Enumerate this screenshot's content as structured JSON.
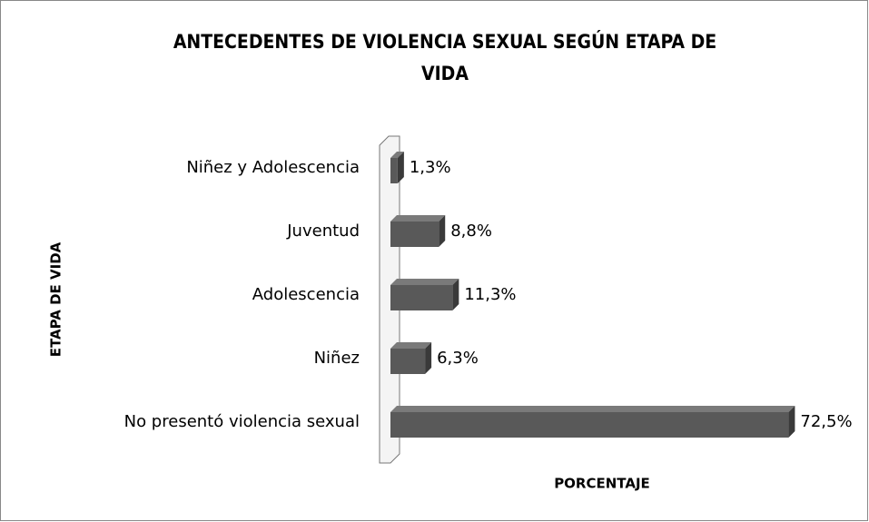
{
  "chart_data": {
    "type": "bar",
    "orientation": "horizontal",
    "title": "ANTECEDENTES DE VIOLENCIA SEXUAL SEGÚN ETAPA DE VIDA",
    "ylabel": "ETAPA DE VIDA",
    "xlabel": "PORCENTAJE",
    "categories": [
      "Niñez y Adolescencia",
      "Juventud",
      "Adolescencia",
      "Niñez",
      "No presentó violencia sexual"
    ],
    "values": [
      1.3,
      8.8,
      11.3,
      6.3,
      72.5
    ],
    "value_labels": [
      "1,3%",
      "8,8%",
      "11,3%",
      "6,3%",
      "72,5%"
    ],
    "color": "#595959",
    "xlim": [
      0,
      85
    ]
  }
}
